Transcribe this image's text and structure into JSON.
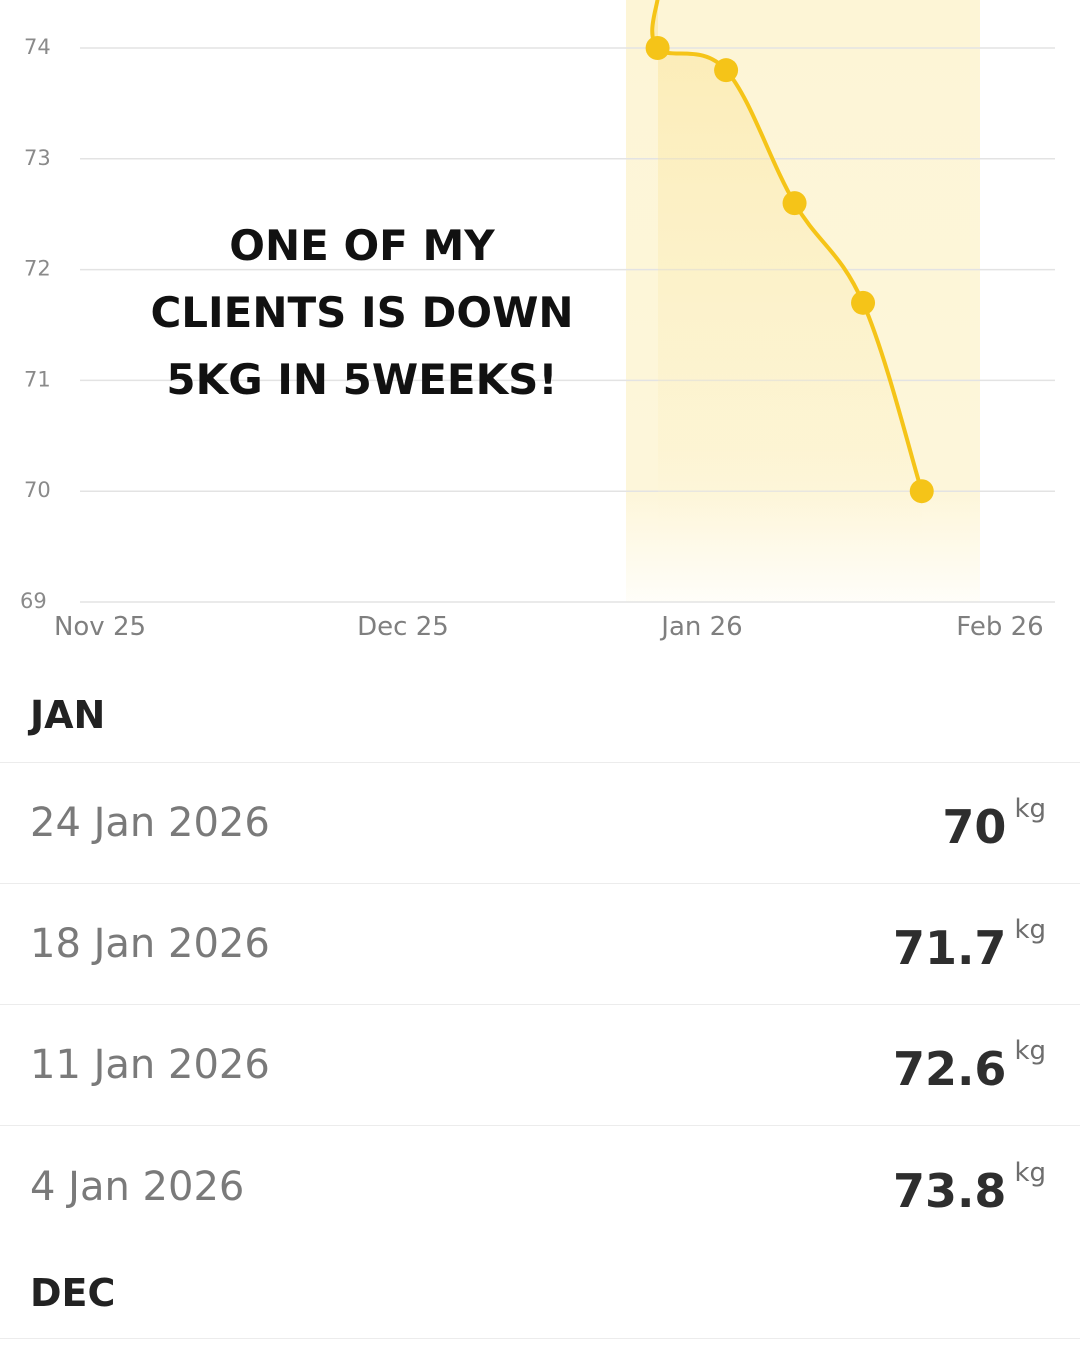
{
  "overlay": {
    "lines": [
      "ONE OF MY",
      "CLIENTS IS DOWN",
      "5KG IN 5WEEKS!"
    ]
  },
  "colors": {
    "accent": "#F5C418",
    "highlight_band": "#FDF5D6",
    "grid": "#E3E3E3"
  },
  "chart_data": {
    "type": "line",
    "title": "",
    "xlabel": "",
    "ylabel": "",
    "ylim": [
      69,
      74
    ],
    "y_ticks": [
      "74",
      "73",
      "72",
      "71",
      "70",
      "69"
    ],
    "x_ticks": [
      "Nov 25",
      "Dec 25",
      "Jan 26",
      "Feb 26"
    ],
    "grid": true,
    "highlighted_range": [
      "Jan 26"
    ],
    "series": [
      {
        "points": [
          {
            "x": "2026-01-04",
            "y": 73.8
          },
          {
            "x": "2026-01-11",
            "y": 72.6
          },
          {
            "x": "2026-01-18",
            "y": 71.7
          },
          {
            "x": "2026-01-24",
            "y": 70
          }
        ],
        "earlier_points_shown": [
          {
            "x": "2025-12-28",
            "y": 74.0
          }
        ]
      }
    ]
  },
  "list": {
    "sections": [
      {
        "month": "JAN",
        "entries": [
          {
            "date": "24 Jan 2026",
            "value": "70",
            "unit": "kg"
          },
          {
            "date": "18 Jan 2026",
            "value": "71.7",
            "unit": "kg"
          },
          {
            "date": "11 Jan 2026",
            "value": "72.6",
            "unit": "kg"
          },
          {
            "date": "4 Jan 2026",
            "value": "73.8",
            "unit": "kg"
          }
        ]
      },
      {
        "month": "DEC",
        "entries": []
      }
    ]
  }
}
